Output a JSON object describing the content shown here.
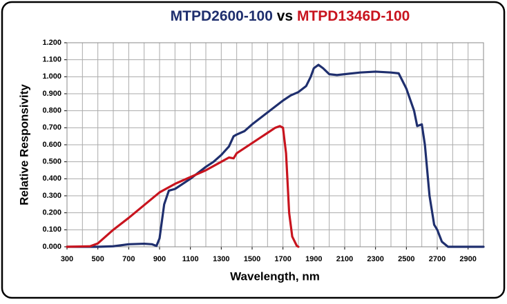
{
  "chart_data": {
    "type": "line",
    "title": [
      "MTPD2600-100",
      "vs",
      "MTPD1346D-100"
    ],
    "x_label": "Wavelength, nm",
    "y_label": "Relative Responsivity",
    "xlim": [
      300,
      3000
    ],
    "ylim": [
      0,
      1.2
    ],
    "xticks": [
      300,
      500,
      700,
      900,
      1100,
      1300,
      1500,
      1700,
      1900,
      2100,
      2300,
      2500,
      2700,
      2900
    ],
    "xgrid": [
      300,
      400,
      500,
      600,
      700,
      800,
      900,
      1000,
      1100,
      1200,
      1300,
      1400,
      1500,
      1600,
      1700,
      1800,
      1900,
      2000,
      2100,
      2200,
      2300,
      2400,
      2500,
      2600,
      2700,
      2800,
      2900,
      3000
    ],
    "yticks": [
      {
        "value": 0,
        "label": "0.000"
      },
      {
        "value": 0.1,
        "label": "0.100"
      },
      {
        "value": 0.2,
        "label": "0.200"
      },
      {
        "value": 0.3,
        "label": "0.300"
      },
      {
        "value": 0.4,
        "label": "0.400"
      },
      {
        "value": 0.5,
        "label": "0.500"
      },
      {
        "value": 0.6,
        "label": "0.600"
      },
      {
        "value": 0.7,
        "label": "0.700"
      },
      {
        "value": 0.8,
        "label": "0.800"
      },
      {
        "value": 0.9,
        "label": "0.900"
      },
      {
        "value": 1.0,
        "label": "1.000"
      },
      {
        "value": 1.1,
        "label": "1.100"
      },
      {
        "value": 1.2,
        "label": "1.200"
      }
    ],
    "grid": true,
    "series": [
      {
        "color": "#1f2f6e",
        "x": [
          300,
          500,
          600,
          700,
          800,
          850,
          880,
          900,
          930,
          960,
          1000,
          1100,
          1200,
          1250,
          1300,
          1350,
          1380,
          1400,
          1450,
          1500,
          1600,
          1700,
          1750,
          1800,
          1850,
          1880,
          1900,
          1930,
          1960,
          2000,
          2050,
          2100,
          2200,
          2300,
          2400,
          2450,
          2500,
          2550,
          2570,
          2600,
          2620,
          2650,
          2680,
          2700,
          2730,
          2770,
          3000
        ],
        "values": [
          0,
          0,
          0.003,
          0.015,
          0.018,
          0.015,
          0.005,
          0.05,
          0.25,
          0.33,
          0.34,
          0.4,
          0.47,
          0.5,
          0.54,
          0.59,
          0.65,
          0.66,
          0.68,
          0.72,
          0.79,
          0.86,
          0.89,
          0.91,
          0.945,
          1.0,
          1.05,
          1.07,
          1.05,
          1.015,
          1.01,
          1.015,
          1.025,
          1.03,
          1.025,
          1.02,
          0.93,
          0.8,
          0.71,
          0.72,
          0.6,
          0.3,
          0.13,
          0.1,
          0.03,
          0,
          0
        ]
      },
      {
        "color": "#c8141e",
        "x": [
          300,
          450,
          500,
          600,
          700,
          800,
          900,
          1000,
          1100,
          1200,
          1300,
          1350,
          1380,
          1400,
          1500,
          1600,
          1650,
          1680,
          1700,
          1720,
          1740,
          1760,
          1790,
          1800
        ],
        "values": [
          0,
          0.003,
          0.02,
          0.1,
          0.17,
          0.245,
          0.32,
          0.37,
          0.41,
          0.45,
          0.5,
          0.525,
          0.52,
          0.55,
          0.61,
          0.67,
          0.7,
          0.71,
          0.7,
          0.55,
          0.2,
          0.06,
          0.005,
          0
        ]
      }
    ]
  }
}
